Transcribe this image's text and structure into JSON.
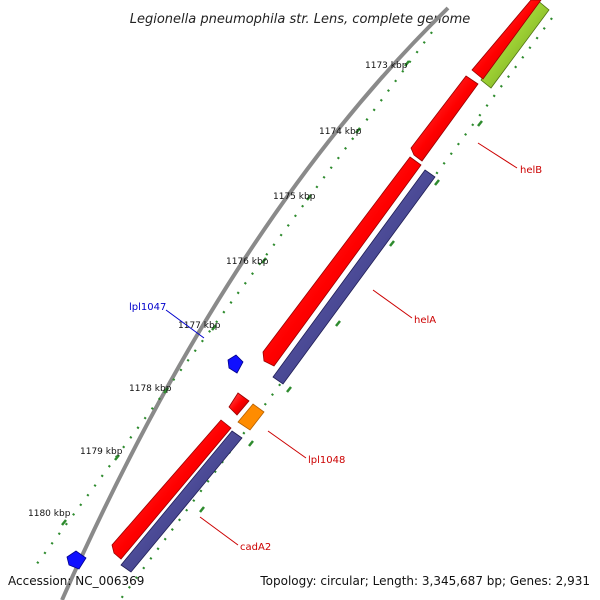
{
  "title": "Legionella pneumophila str. Lens, complete genome",
  "footer": {
    "accession": "Accession: NC_006369",
    "summary": "Topology: circular; Length: 3,345,687 bp; Genes: 2,931"
  },
  "colors": {
    "backbone": "#8a8a8a",
    "tick_dots": "#2e8b2e",
    "forward_gene": "#ff0000",
    "reverse_cds": "#4b4a96",
    "blue_gene": "#1010ff",
    "orange_gene": "#ff8c00",
    "green_feature": "#9acd32",
    "label_red": "#cc0000",
    "label_blue": "#0000cc"
  },
  "ticks": [
    {
      "label": "1173 kbp"
    },
    {
      "label": "1174 kbp"
    },
    {
      "label": "1175 kbp"
    },
    {
      "label": "1176 kbp"
    },
    {
      "label": "1177 kbp"
    },
    {
      "label": "1178 kbp"
    },
    {
      "label": "1179 kbp"
    },
    {
      "label": "1180 kbp"
    }
  ],
  "gene_labels": [
    {
      "name": "helB",
      "color": "#cc0000"
    },
    {
      "name": "helA",
      "color": "#cc0000"
    },
    {
      "name": "lpl1047",
      "color": "#0000cc"
    },
    {
      "name": "lpl1048",
      "color": "#cc0000"
    },
    {
      "name": "cadA2",
      "color": "#cc0000"
    }
  ]
}
